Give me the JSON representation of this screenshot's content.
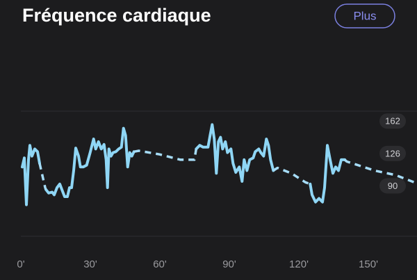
{
  "chart_data": {
    "type": "line",
    "title": "Fréquence cardiaque",
    "x": [
      0.6,
      1.5,
      2.4,
      3.3,
      3.9,
      4.8,
      6.0,
      7.2,
      8.1,
      10.5,
      10.8,
      12.0,
      13.5,
      14.4,
      15.6,
      16.8,
      18.0,
      18.9,
      20.1,
      21.0,
      21.9,
      22.8,
      23.7,
      24.9,
      25.7,
      26.9,
      28.4,
      29.9,
      31.4,
      32.3,
      33.5,
      34.7,
      35.9,
      36.8,
      37.4,
      38.0,
      38.9,
      39.8,
      41.0,
      42.2,
      43.4,
      44.3,
      45.2,
      46.1,
      47.0,
      47.9,
      48.8,
      50.9,
      59.9,
      68.9,
      74.9,
      75.7,
      77.2,
      78.7,
      80.8,
      81.7,
      82.6,
      83.5,
      84.4,
      85.3,
      86.2,
      87.1,
      88.3,
      89.2,
      90.7,
      91.6,
      92.8,
      94.3,
      95.5,
      96.4,
      97.6,
      98.8,
      100.3,
      101.2,
      102.7,
      103.6,
      104.8,
      106.0,
      106.9,
      107.8,
      109.0,
      110.8,
      116.8,
      122.8,
      124.9,
      125.7,
      127.2,
      128.7,
      130.2,
      131.1,
      132.3,
      133.5,
      134.7,
      135.9,
      137.1,
      138.3,
      139.8,
      140.7,
      152.7,
      161.7,
      170.7
    ],
    "series": [
      {
        "color": "#8fd6f5",
        "dashed": false,
        "values": [
          111,
          121,
          69,
          119,
          135,
          123,
          131,
          128,
          115,
          null,
          86,
          82,
          83,
          80,
          88,
          92,
          84,
          78,
          78,
          88,
          88,
          107,
          132,
          123,
          111,
          111,
          113,
          127,
          142,
          131,
          139,
          131,
          136,
          119,
          88,
          131,
          123,
          127,
          128,
          131,
          133,
          154,
          146,
          111,
          127,
          123,
          128,
          null,
          null,
          null,
          null,
          131,
          135,
          133,
          133,
          146,
          158,
          142,
          104,
          139,
          144,
          131,
          139,
          127,
          131,
          115,
          105,
          111,
          95,
          119,
          107,
          119,
          121,
          128,
          131,
          127,
          123,
          142,
          135,
          119,
          107,
          null,
          null,
          null,
          92,
          80,
          72,
          76,
          72,
          88,
          135,
          119,
          104,
          111,
          107,
          119,
          119,
          null,
          null,
          null,
          null
        ]
      },
      {
        "color": "#a6dcf7",
        "dashed": true,
        "values": [
          null,
          null,
          null,
          null,
          null,
          null,
          null,
          null,
          115,
          88,
          86,
          null,
          null,
          null,
          null,
          null,
          null,
          null,
          null,
          null,
          null,
          null,
          null,
          null,
          null,
          null,
          null,
          null,
          null,
          null,
          null,
          null,
          null,
          null,
          null,
          null,
          null,
          null,
          null,
          null,
          null,
          null,
          null,
          null,
          null,
          null,
          128,
          129,
          125,
          119,
          119,
          131,
          null,
          null,
          null,
          null,
          null,
          null,
          null,
          null,
          null,
          null,
          null,
          null,
          null,
          null,
          null,
          null,
          null,
          null,
          null,
          null,
          null,
          null,
          null,
          null,
          null,
          null,
          null,
          null,
          107,
          110,
          104,
          94,
          92,
          null,
          null,
          null,
          null,
          null,
          null,
          null,
          null,
          null,
          null,
          null,
          119,
          117,
          107,
          102,
          93
        ]
      }
    ],
    "xlim": [
      0,
      171
    ],
    "xticks": [
      {
        "value": 0,
        "label": "0'"
      },
      {
        "value": 30,
        "label": "30'"
      },
      {
        "value": 60,
        "label": "60'"
      },
      {
        "value": 90,
        "label": "90'"
      },
      {
        "value": 120,
        "label": "120'"
      },
      {
        "value": 150,
        "label": "150'"
      }
    ],
    "ylim": [
      34,
      173
    ],
    "yticks": [
      162,
      126,
      90
    ]
  },
  "button": "Plus"
}
